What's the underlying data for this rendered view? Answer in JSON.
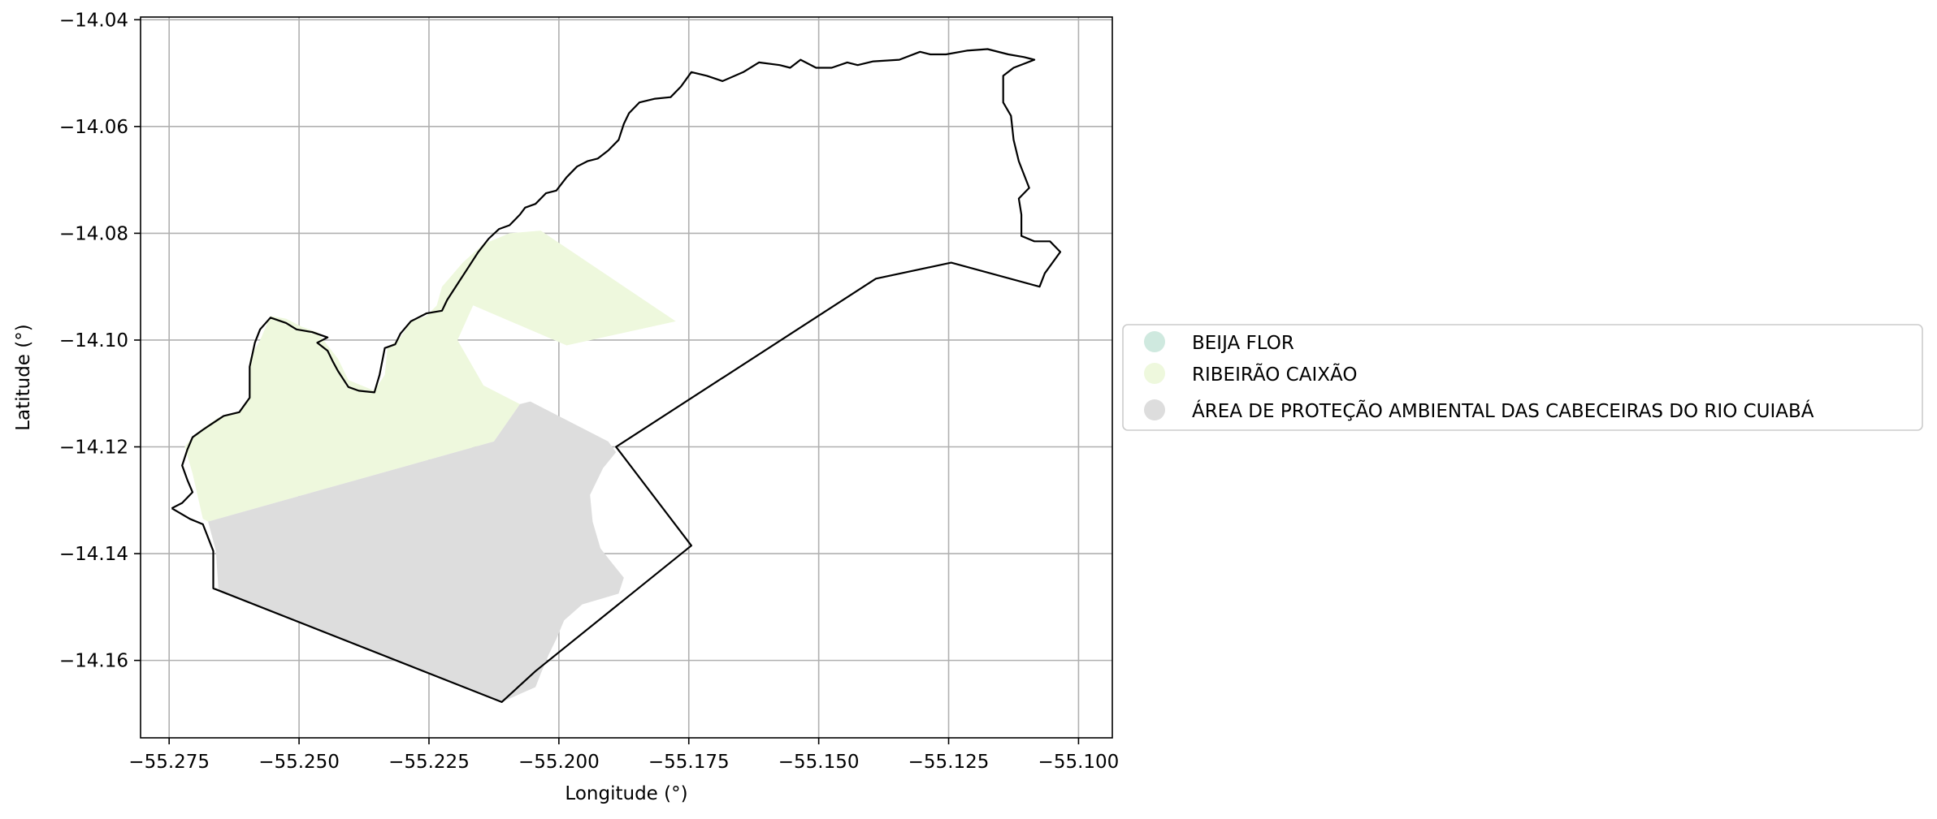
{
  "chart_data": {
    "type": "map",
    "xlabel": "Longitude (°)",
    "ylabel": "Latitude (°)",
    "xlim": [
      -55.2805,
      -55.0935
    ],
    "ylim": [
      -14.1745,
      -14.0395
    ],
    "grid": true,
    "x_ticks": [
      -55.275,
      -55.25,
      -55.225,
      -55.2,
      -55.175,
      -55.15,
      -55.125,
      -55.1
    ],
    "x_tick_labels": [
      "−55.275",
      "−55.250",
      "−55.225",
      "−55.200",
      "−55.175",
      "−55.150",
      "−55.125",
      "−55.100"
    ],
    "y_ticks": [
      -14.04,
      -14.06,
      -14.08,
      -14.1,
      -14.12,
      -14.14,
      -14.16
    ],
    "y_tick_labels": [
      "−14.04",
      "−14.06",
      "−14.08",
      "−14.10",
      "−14.12",
      "−14.14",
      "−14.16"
    ],
    "legend": {
      "placement": "center-right outside",
      "entries": [
        {
          "label": "BEIJA FLOR",
          "color": "#cfe9df"
        },
        {
          "label": "RIBEIRÃO CAIXÃO",
          "color": "#eef8dd"
        },
        {
          "label": "ÁREA DE PROTEÇÃO AMBIENTAL DAS CABECEIRAS DO RIO CUIABÁ",
          "color": "#dddddd"
        }
      ]
    },
    "regions": [
      {
        "name": "RIBEIRÃO CAIXÃO",
        "color": "#eef8dd",
        "polygon": [
          [
            -55.2685,
            -14.1335
          ],
          [
            -55.2705,
            -14.125
          ],
          [
            -55.272,
            -14.12
          ],
          [
            -55.2705,
            -14.118
          ],
          [
            -55.2685,
            -14.1165
          ],
          [
            -55.2655,
            -14.1145
          ],
          [
            -55.2615,
            -14.1135
          ],
          [
            -55.2595,
            -14.111
          ],
          [
            -55.2595,
            -14.1035
          ],
          [
            -55.2575,
            -14.1
          ],
          [
            -55.2555,
            -14.0955
          ],
          [
            -55.2525,
            -14.096
          ],
          [
            -55.2495,
            -14.0975
          ],
          [
            -55.2465,
            -14.0985
          ],
          [
            -55.2425,
            -14.1035
          ],
          [
            -55.2405,
            -14.1075
          ],
          [
            -55.2355,
            -14.1095
          ],
          [
            -55.2335,
            -14.1065
          ],
          [
            -55.233,
            -14.1015
          ],
          [
            -55.2305,
            -14.0995
          ],
          [
            -55.2285,
            -14.0965
          ],
          [
            -55.2255,
            -14.0955
          ],
          [
            -55.2235,
            -14.0935
          ],
          [
            -55.2225,
            -14.09
          ],
          [
            -55.2185,
            -14.0855
          ],
          [
            -55.2145,
            -14.082
          ],
          [
            -55.2095,
            -14.08
          ],
          [
            -55.2035,
            -14.0795
          ],
          [
            -55.1775,
            -14.0965
          ],
          [
            -55.1985,
            -14.101
          ],
          [
            -55.2165,
            -14.0935
          ],
          [
            -55.2195,
            -14.1
          ],
          [
            -55.2145,
            -14.1085
          ],
          [
            -55.2075,
            -14.112
          ],
          [
            -55.2125,
            -14.119
          ],
          [
            -55.2675,
            -14.134
          ]
        ]
      },
      {
        "name": "ÁREA DE PROTEÇÃO AMBIENTAL DAS CABECEIRAS DO RIO CUIABÁ",
        "color": "#dddddd",
        "polygon": [
          [
            -55.2675,
            -14.134
          ],
          [
            -55.2125,
            -14.119
          ],
          [
            -55.2075,
            -14.112
          ],
          [
            -55.2055,
            -14.1115
          ],
          [
            -55.1905,
            -14.119
          ],
          [
            -55.189,
            -14.121
          ],
          [
            -55.1915,
            -14.124
          ],
          [
            -55.194,
            -14.129
          ],
          [
            -55.1935,
            -14.134
          ],
          [
            -55.192,
            -14.139
          ],
          [
            -55.19,
            -14.1415
          ],
          [
            -55.1875,
            -14.1445
          ],
          [
            -55.1885,
            -14.1475
          ],
          [
            -55.1955,
            -14.1495
          ],
          [
            -55.199,
            -14.1525
          ],
          [
            -55.2005,
            -14.156
          ],
          [
            -55.202,
            -14.159
          ],
          [
            -55.2035,
            -14.1625
          ],
          [
            -55.2045,
            -14.165
          ],
          [
            -55.211,
            -14.1678
          ],
          [
            -55.2655,
            -14.1468
          ],
          [
            -55.266,
            -14.1395
          ],
          [
            -55.2675,
            -14.134
          ]
        ]
      }
    ],
    "boundary_polyline": [
      [
        -55.2745,
        -14.1315
      ],
      [
        -55.271,
        -14.1335
      ],
      [
        -55.2685,
        -14.1345
      ],
      [
        -55.2665,
        -14.1395
      ],
      [
        -55.2665,
        -14.1465
      ],
      [
        -55.211,
        -14.1678
      ],
      [
        -55.2045,
        -14.162
      ],
      [
        -55.1745,
        -14.1385
      ],
      [
        -55.189,
        -14.12
      ],
      [
        -55.139,
        -14.0885
      ],
      [
        -55.1245,
        -14.0855
      ],
      [
        -55.1075,
        -14.09
      ],
      [
        -55.1065,
        -14.0875
      ],
      [
        -55.1035,
        -14.0835
      ],
      [
        -55.1055,
        -14.0815
      ],
      [
        -55.1085,
        -14.0815
      ],
      [
        -55.111,
        -14.0805
      ],
      [
        -55.111,
        -14.0765
      ],
      [
        -55.1115,
        -14.0735
      ],
      [
        -55.1095,
        -14.0715
      ],
      [
        -55.1115,
        -14.0665
      ],
      [
        -55.1125,
        -14.0625
      ],
      [
        -55.113,
        -14.058
      ],
      [
        -55.1145,
        -14.0555
      ],
      [
        -55.1145,
        -14.0505
      ],
      [
        -55.1125,
        -14.049
      ],
      [
        -55.1085,
        -14.0475
      ],
      [
        -55.1105,
        -14.047
      ],
      [
        -55.1135,
        -14.0465
      ],
      [
        -55.1175,
        -14.0455
      ],
      [
        -55.1215,
        -14.0458
      ],
      [
        -55.1255,
        -14.0465
      ],
      [
        -55.1285,
        -14.0465
      ],
      [
        -55.1305,
        -14.046
      ],
      [
        -55.1345,
        -14.0475
      ],
      [
        -55.1395,
        -14.0478
      ],
      [
        -55.1425,
        -14.0485
      ],
      [
        -55.1445,
        -14.048
      ],
      [
        -55.1475,
        -14.049
      ],
      [
        -55.1505,
        -14.049
      ],
      [
        -55.1535,
        -14.0475
      ],
      [
        -55.1555,
        -14.049
      ],
      [
        -55.1575,
        -14.0485
      ],
      [
        -55.1615,
        -14.048
      ],
      [
        -55.1645,
        -14.0498
      ],
      [
        -55.1685,
        -14.0515
      ],
      [
        -55.1715,
        -14.0505
      ],
      [
        -55.1745,
        -14.0498
      ],
      [
        -55.1765,
        -14.0525
      ],
      [
        -55.1785,
        -14.0545
      ],
      [
        -55.1815,
        -14.0548
      ],
      [
        -55.1845,
        -14.0555
      ],
      [
        -55.1865,
        -14.0575
      ],
      [
        -55.1875,
        -14.0595
      ],
      [
        -55.1885,
        -14.0625
      ],
      [
        -55.1905,
        -14.0645
      ],
      [
        -55.1925,
        -14.066
      ],
      [
        -55.1945,
        -14.0665
      ],
      [
        -55.1965,
        -14.0675
      ],
      [
        -55.1985,
        -14.0695
      ],
      [
        -55.2005,
        -14.072
      ],
      [
        -55.2025,
        -14.0725
      ],
      [
        -55.2045,
        -14.0745
      ],
      [
        -55.2065,
        -14.0752
      ],
      [
        -55.2075,
        -14.0765
      ],
      [
        -55.2095,
        -14.0785
      ],
      [
        -55.2115,
        -14.0792
      ],
      [
        -55.2135,
        -14.081
      ],
      [
        -55.2155,
        -14.0835
      ],
      [
        -55.2175,
        -14.0865
      ],
      [
        -55.2195,
        -14.0895
      ],
      [
        -55.2215,
        -14.0925
      ],
      [
        -55.2225,
        -14.0945
      ],
      [
        -55.2255,
        -14.095
      ],
      [
        -55.2285,
        -14.0965
      ],
      [
        -55.2305,
        -14.0988
      ],
      [
        -55.2315,
        -14.1008
      ],
      [
        -55.2335,
        -14.1015
      ],
      [
        -55.2345,
        -14.1065
      ],
      [
        -55.2355,
        -14.1098
      ],
      [
        -55.2385,
        -14.1095
      ],
      [
        -55.2405,
        -14.1088
      ],
      [
        -55.2425,
        -14.1058
      ],
      [
        -55.2435,
        -14.104
      ],
      [
        -55.2445,
        -14.102
      ],
      [
        -55.2465,
        -14.1005
      ],
      [
        -55.2445,
        -14.0995
      ],
      [
        -55.2475,
        -14.0985
      ],
      [
        -55.2505,
        -14.098
      ],
      [
        -55.2525,
        -14.0968
      ],
      [
        -55.2555,
        -14.0958
      ],
      [
        -55.2575,
        -14.098
      ],
      [
        -55.2585,
        -14.1005
      ],
      [
        -55.2595,
        -14.105
      ],
      [
        -55.2595,
        -14.1108
      ],
      [
        -55.2615,
        -14.1135
      ],
      [
        -55.2645,
        -14.1142
      ],
      [
        -55.2665,
        -14.1155
      ],
      [
        -55.2685,
        -14.1168
      ],
      [
        -55.2705,
        -14.1182
      ],
      [
        -55.2715,
        -14.1205
      ],
      [
        -55.2725,
        -14.1235
      ],
      [
        -55.2715,
        -14.1262
      ],
      [
        -55.2705,
        -14.1285
      ],
      [
        -55.2725,
        -14.1305
      ],
      [
        -55.2745,
        -14.1315
      ]
    ]
  }
}
